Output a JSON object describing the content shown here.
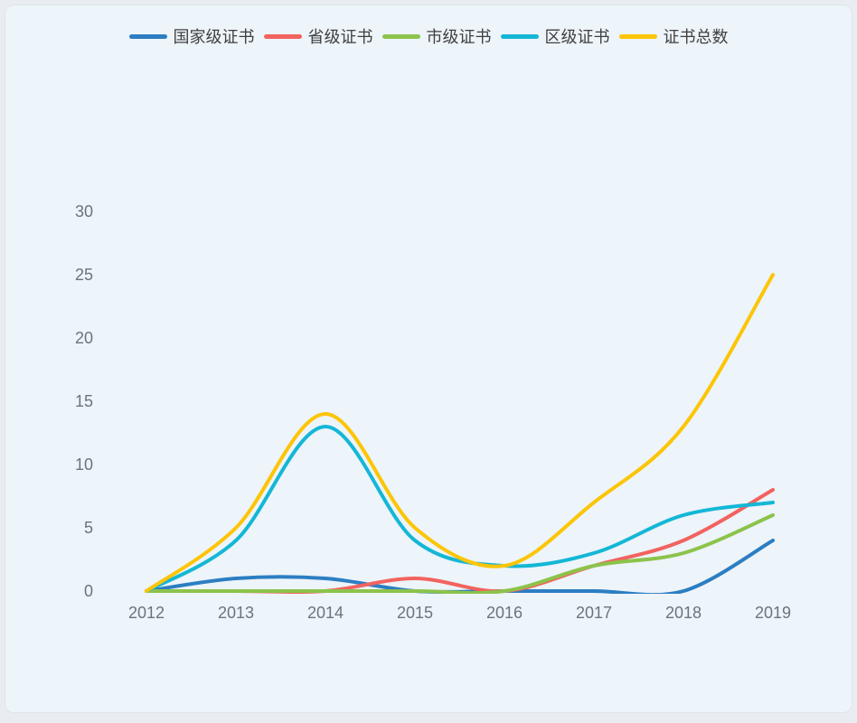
{
  "colors": {
    "page_background": "#e9edf1",
    "card_background": "#edf4fa",
    "card_border": "#dee5ec",
    "axis_label": "#6d737b",
    "legend_label": "#404040"
  },
  "chart_data": {
    "type": "line",
    "title": "",
    "smooth": true,
    "show_symbols": false,
    "grid_lines": false,
    "legend_position": "top-center",
    "categories": [
      "2012",
      "2013",
      "2014",
      "2015",
      "2016",
      "2017",
      "2018",
      "2019"
    ],
    "series": [
      {
        "name": "国家级证书",
        "color": "#2c7ec2",
        "values": [
          0,
          1,
          1,
          0,
          0,
          0,
          0,
          4
        ]
      },
      {
        "name": "省级证书",
        "color": "#f2635f",
        "values": [
          0,
          0,
          0,
          1,
          0,
          2,
          4,
          8
        ]
      },
      {
        "name": "市级证书",
        "color": "#8cc34b",
        "values": [
          0,
          0,
          0,
          0,
          0,
          2,
          3,
          6
        ]
      },
      {
        "name": "区级证书",
        "color": "#14b7d6",
        "values": [
          0,
          4,
          13,
          4,
          2,
          3,
          6,
          7
        ]
      },
      {
        "name": "证书总数",
        "color": "#fcc506",
        "values": [
          0,
          5,
          14,
          5,
          2,
          7,
          13,
          25
        ]
      }
    ],
    "xlabel": "",
    "ylabel": "",
    "ylim": [
      0,
      30
    ],
    "yticks": [
      0,
      5,
      10,
      15,
      20,
      25,
      30
    ]
  }
}
